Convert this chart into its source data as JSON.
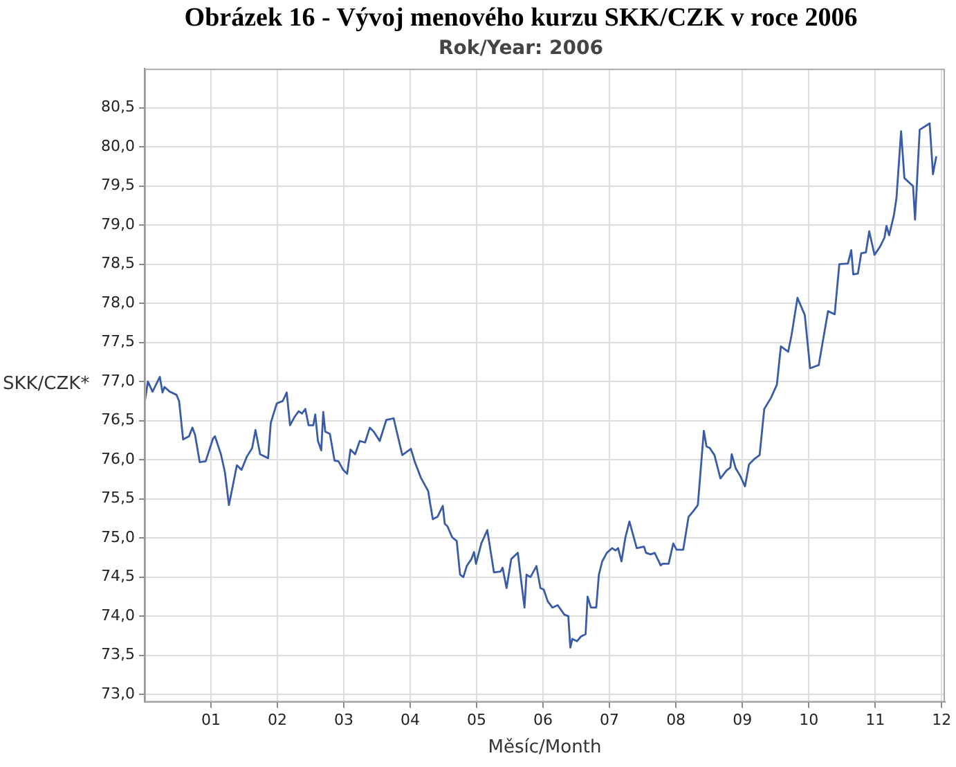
{
  "chart_data": {
    "type": "line",
    "title": "Obrázek 16 - Vývoj menového kurzu SKK/CZK v roce 2006",
    "subtitle": "Rok/Year: 2006",
    "xlabel": "Měsíc/Month",
    "ylabel": "SKK/CZK*",
    "series": [
      {
        "color": "#3a5ca8",
        "x": [
          0.0,
          0.05,
          0.12,
          0.23,
          0.27,
          0.3,
          0.38,
          0.48,
          0.52,
          0.58,
          0.67,
          0.72,
          0.76,
          0.83,
          0.92,
          1.03,
          1.06,
          1.15,
          1.21,
          1.27,
          1.39,
          1.46,
          1.54,
          1.62,
          1.67,
          1.74,
          1.86,
          1.9,
          1.99,
          2.08,
          2.14,
          2.19,
          2.26,
          2.32,
          2.37,
          2.42,
          2.47,
          2.54,
          2.57,
          2.61,
          2.66,
          2.69,
          2.72,
          2.79,
          2.86,
          2.92,
          2.99,
          3.05,
          3.1,
          3.17,
          3.24,
          3.32,
          3.39,
          3.45,
          3.54,
          3.64,
          3.75,
          3.83,
          3.88,
          4.01,
          4.07,
          4.16,
          4.27,
          4.3,
          4.34,
          4.41,
          4.49,
          4.52,
          4.56,
          4.63,
          4.7,
          4.75,
          4.8,
          4.85,
          4.92,
          4.96,
          4.99,
          5.07,
          5.16,
          5.26,
          5.36,
          5.39,
          5.45,
          5.52,
          5.62,
          5.67,
          5.72,
          5.75,
          5.81,
          5.9,
          5.96,
          6.01,
          6.07,
          6.14,
          6.22,
          6.32,
          6.38,
          6.41,
          6.44,
          6.51,
          6.57,
          6.64,
          6.67,
          6.72,
          6.8,
          6.84,
          6.89,
          6.96,
          7.04,
          7.09,
          7.13,
          7.18,
          7.24,
          7.3,
          7.41,
          7.52,
          7.55,
          7.62,
          7.68,
          7.77,
          7.8,
          7.89,
          7.96,
          8.01,
          8.11,
          8.19,
          8.26,
          8.33,
          8.42,
          8.46,
          8.51,
          8.58,
          8.67,
          8.76,
          8.82,
          8.84,
          8.9,
          8.97,
          9.04,
          9.1,
          9.18,
          9.26,
          9.33,
          9.43,
          9.52,
          9.58,
          9.69,
          9.74,
          9.83,
          9.94,
          10.02,
          10.15,
          10.29,
          10.39,
          10.46,
          10.59,
          10.64,
          10.67,
          10.74,
          10.79,
          10.86,
          10.91,
          10.99,
          11.07,
          11.14,
          11.17,
          11.21,
          11.28,
          11.32,
          11.39,
          11.44,
          11.57,
          11.6,
          11.67,
          11.82,
          11.87,
          11.92
        ],
        "values": [
          76.72,
          77.0,
          76.87,
          77.06,
          76.86,
          76.93,
          76.87,
          76.83,
          76.75,
          76.26,
          76.3,
          76.41,
          76.32,
          75.97,
          75.98,
          76.27,
          76.3,
          76.07,
          75.84,
          75.42,
          75.93,
          75.87,
          76.04,
          76.15,
          76.38,
          76.07,
          76.02,
          76.47,
          76.72,
          76.75,
          76.86,
          76.44,
          76.55,
          76.62,
          76.59,
          76.65,
          76.44,
          76.44,
          76.58,
          76.24,
          76.12,
          76.61,
          76.36,
          76.33,
          75.99,
          75.98,
          75.87,
          75.82,
          76.13,
          76.07,
          76.24,
          76.22,
          76.41,
          76.36,
          76.24,
          76.51,
          76.53,
          76.24,
          76.06,
          76.14,
          75.97,
          75.77,
          75.6,
          75.44,
          75.24,
          75.27,
          75.41,
          75.18,
          75.15,
          75.01,
          74.96,
          74.53,
          74.5,
          74.64,
          74.73,
          74.82,
          74.67,
          74.93,
          75.1,
          74.56,
          74.57,
          74.62,
          74.36,
          74.73,
          74.81,
          74.45,
          74.11,
          74.53,
          74.5,
          74.64,
          74.36,
          74.34,
          74.19,
          74.11,
          74.14,
          74.02,
          74.0,
          73.6,
          73.71,
          73.68,
          73.74,
          73.77,
          74.25,
          74.11,
          74.11,
          74.53,
          74.7,
          74.81,
          74.87,
          74.84,
          74.87,
          74.7,
          75.01,
          75.21,
          74.87,
          74.89,
          74.81,
          74.79,
          74.81,
          74.65,
          74.67,
          74.67,
          74.93,
          74.85,
          74.85,
          75.27,
          75.34,
          75.42,
          76.37,
          76.17,
          76.15,
          76.06,
          75.76,
          75.86,
          75.9,
          76.07,
          75.89,
          75.79,
          75.66,
          75.94,
          76.01,
          76.06,
          76.65,
          76.79,
          76.96,
          77.45,
          77.38,
          77.59,
          78.07,
          77.85,
          77.17,
          77.21,
          77.9,
          77.86,
          78.5,
          78.51,
          78.68,
          78.37,
          78.38,
          78.64,
          78.65,
          78.92,
          78.62,
          78.72,
          78.84,
          78.99,
          78.87,
          79.12,
          79.34,
          80.2,
          79.6,
          79.5,
          79.07,
          80.22,
          80.3,
          79.65,
          79.88
        ]
      }
    ],
    "xlim": [
      0,
      12.05
    ],
    "ylim": [
      72.9,
      81.0
    ],
    "xticks": [
      {
        "value": 1,
        "label": "01"
      },
      {
        "value": 2,
        "label": "02"
      },
      {
        "value": 3,
        "label": "03"
      },
      {
        "value": 4,
        "label": "04"
      },
      {
        "value": 5,
        "label": "05"
      },
      {
        "value": 6,
        "label": "06"
      },
      {
        "value": 7,
        "label": "07"
      },
      {
        "value": 8,
        "label": "08"
      },
      {
        "value": 9,
        "label": "09"
      },
      {
        "value": 10,
        "label": "10"
      },
      {
        "value": 11,
        "label": "11"
      },
      {
        "value": 12,
        "label": "12"
      }
    ],
    "yticks": [
      {
        "value": 73,
        "label": "73,0"
      },
      {
        "value": 73.5,
        "label": "73,5"
      },
      {
        "value": 74,
        "label": "74,0"
      },
      {
        "value": 74.5,
        "label": "74,5"
      },
      {
        "value": 75,
        "label": "75,0"
      },
      {
        "value": 75.5,
        "label": "75,5"
      },
      {
        "value": 76,
        "label": "76,0"
      },
      {
        "value": 76.5,
        "label": "76,5"
      },
      {
        "value": 77,
        "label": "77,0"
      },
      {
        "value": 77.5,
        "label": "77,5"
      },
      {
        "value": 78,
        "label": "78,0"
      },
      {
        "value": 78.5,
        "label": "78,5"
      },
      {
        "value": 79,
        "label": "79,0"
      },
      {
        "value": 79.5,
        "label": "79,5"
      },
      {
        "value": 80,
        "label": "80,0"
      },
      {
        "value": 80.5,
        "label": "80,5"
      }
    ],
    "grid": true,
    "legend": false,
    "marker": "none",
    "line_style": "solid"
  }
}
